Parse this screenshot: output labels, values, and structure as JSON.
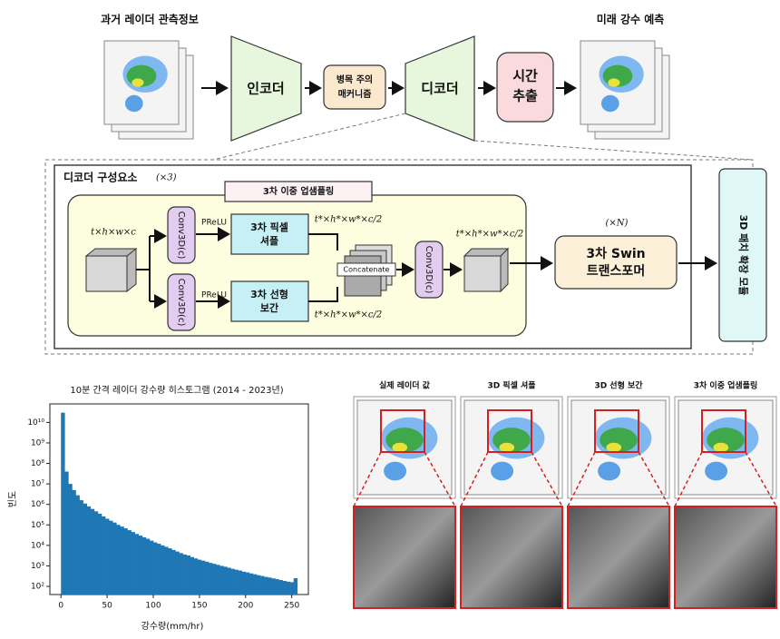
{
  "diagram": {
    "input_label": "과거 레이더 관측정보",
    "encoder": "인코더",
    "bottleneck": [
      "병목 주의",
      "매커니즘"
    ],
    "decoder": "디코더",
    "temporal": [
      "시간",
      "추출"
    ],
    "output_label": "미래 강수 예측",
    "block": {
      "title": "디코더 구성요소",
      "repeat": "(×3)",
      "upsampling_title": "3차 이중 업샘플링",
      "input_shape": "t×h×w×c",
      "conv_top": "Conv3D(c)",
      "conv_bottom": "Conv3D(c)",
      "prelu_top": "PReLU",
      "prelu_bottom": "PReLU",
      "pixel_shuffle": [
        "3차 픽셀",
        "셔플"
      ],
      "linear": [
        "3차 선형",
        "보간"
      ],
      "shape_top": "t*×h*×w*×c/2",
      "shape_bottom": "t*×h*×w*×c/2",
      "concat": "Concatenate",
      "conv_merge": "Conv3D(c)",
      "shape_out": "t*×h*×w*×c/2",
      "swin_repeat": "(×N)",
      "swin": [
        "3차 Swin",
        "트랜스포머"
      ],
      "patch_expand": "3D 패치 확장 모듈"
    }
  },
  "chart_data": {
    "type": "histogram",
    "title": "10분 간격 레이더 강수량 히스토그램 (2014 - 2023년)",
    "x_label": "강수량(mm/hr)",
    "y_label": "빈도",
    "color": "#1f77b4",
    "log_y": true,
    "bins": [
      0,
      4,
      8,
      12,
      16,
      20,
      24,
      28,
      32,
      36,
      40,
      44,
      48,
      52,
      56,
      60,
      64,
      68,
      72,
      76,
      80,
      84,
      88,
      92,
      96,
      100,
      104,
      108,
      112,
      116,
      120,
      124,
      128,
      132,
      136,
      140,
      144,
      148,
      152,
      156,
      160,
      164,
      168,
      172,
      176,
      180,
      184,
      188,
      192,
      196,
      200,
      204,
      208,
      212,
      216,
      220,
      224,
      228,
      232,
      236,
      240,
      244,
      248,
      252,
      256
    ],
    "values": [
      30000000000.0,
      40000000.0,
      10000000.0,
      5000000.0,
      2800000.0,
      1600000.0,
      1100000.0,
      800000.0,
      600000.0,
      460000.0,
      350000.0,
      260000.0,
      200000.0,
      160000.0,
      130000.0,
      100000.0,
      83000.0,
      68000.0,
      55000.0,
      45000.0,
      36000.0,
      30000.0,
      25000.0,
      21000.0,
      17000.0,
      14000.0,
      12000.0,
      10000.0,
      8500,
      7200,
      6000,
      5000,
      4200,
      3600,
      3200,
      2700,
      2300,
      2000,
      1800,
      1600,
      1400,
      1260,
      1120,
      1000,
      910,
      810,
      720,
      650,
      590,
      520,
      480,
      430,
      390,
      350,
      320,
      290,
      270,
      245,
      225,
      205,
      185,
      170,
      160,
      250
    ],
    "xlim": [
      -12,
      268
    ],
    "xticks": [
      0,
      50,
      100,
      150,
      200,
      250
    ],
    "ylim": [
      40,
      80000000000.0
    ],
    "yticks": [
      {
        "value": 100,
        "label": "10²"
      },
      {
        "value": 1000,
        "label": "10³"
      },
      {
        "value": 10000,
        "label": "10⁴"
      },
      {
        "value": 100000,
        "label": "10⁵"
      },
      {
        "value": 1000000,
        "label": "10⁶"
      },
      {
        "value": 10000000,
        "label": "10⁷"
      },
      {
        "value": 100000000,
        "label": "10⁸"
      },
      {
        "value": 1000000000,
        "label": "10⁹"
      },
      {
        "value": 10000000000,
        "label": "10¹⁰"
      }
    ]
  },
  "comparison": {
    "titles": [
      "실제 레이더 값",
      "3D 픽셀 셔플",
      "3D 선형 보간",
      "3차 이중 업샘플링"
    ]
  }
}
